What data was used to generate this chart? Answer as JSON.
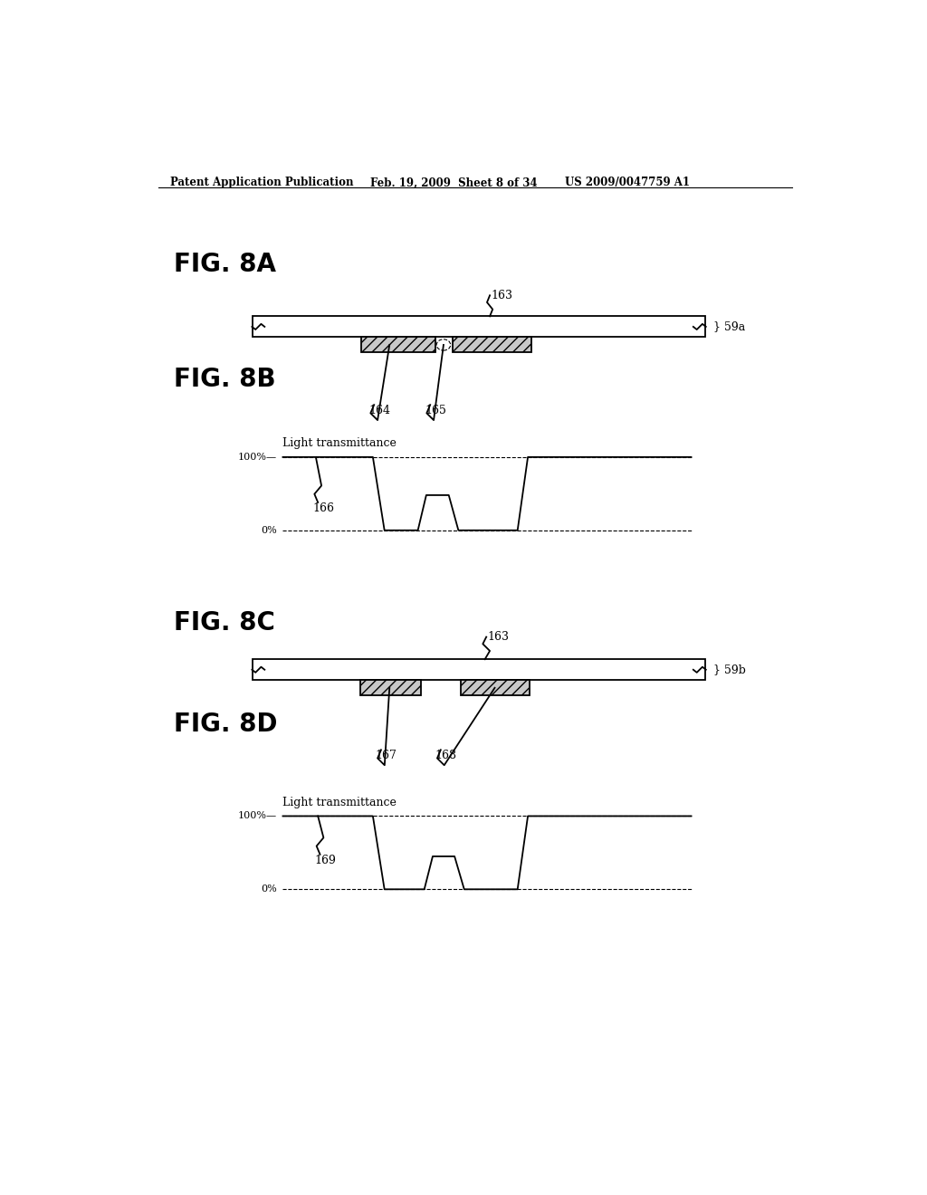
{
  "bg_color": "#ffffff",
  "header_text": "Patent Application Publication",
  "header_date": "Feb. 19, 2009  Sheet 8 of 34",
  "header_patent": "US 2009/0047759 A1",
  "fig8a_label": "FIG. 8A",
  "fig8b_label": "FIG. 8B",
  "fig8c_label": "FIG. 8C",
  "fig8d_label": "FIG. 8D",
  "label_163a": "163",
  "label_164": "164",
  "label_165": "165",
  "label_163c": "163",
  "label_166": "166",
  "label_167": "167",
  "label_168": "168",
  "label_169": "169",
  "label_59a": "} 59a",
  "label_59b": "} 59b",
  "light_trans": "Light transmittance",
  "pct_100": "100%—",
  "pct_0": "0%",
  "line_color": "#000000",
  "hatch_gray": "#b0b0b0",
  "lw": 1.3
}
